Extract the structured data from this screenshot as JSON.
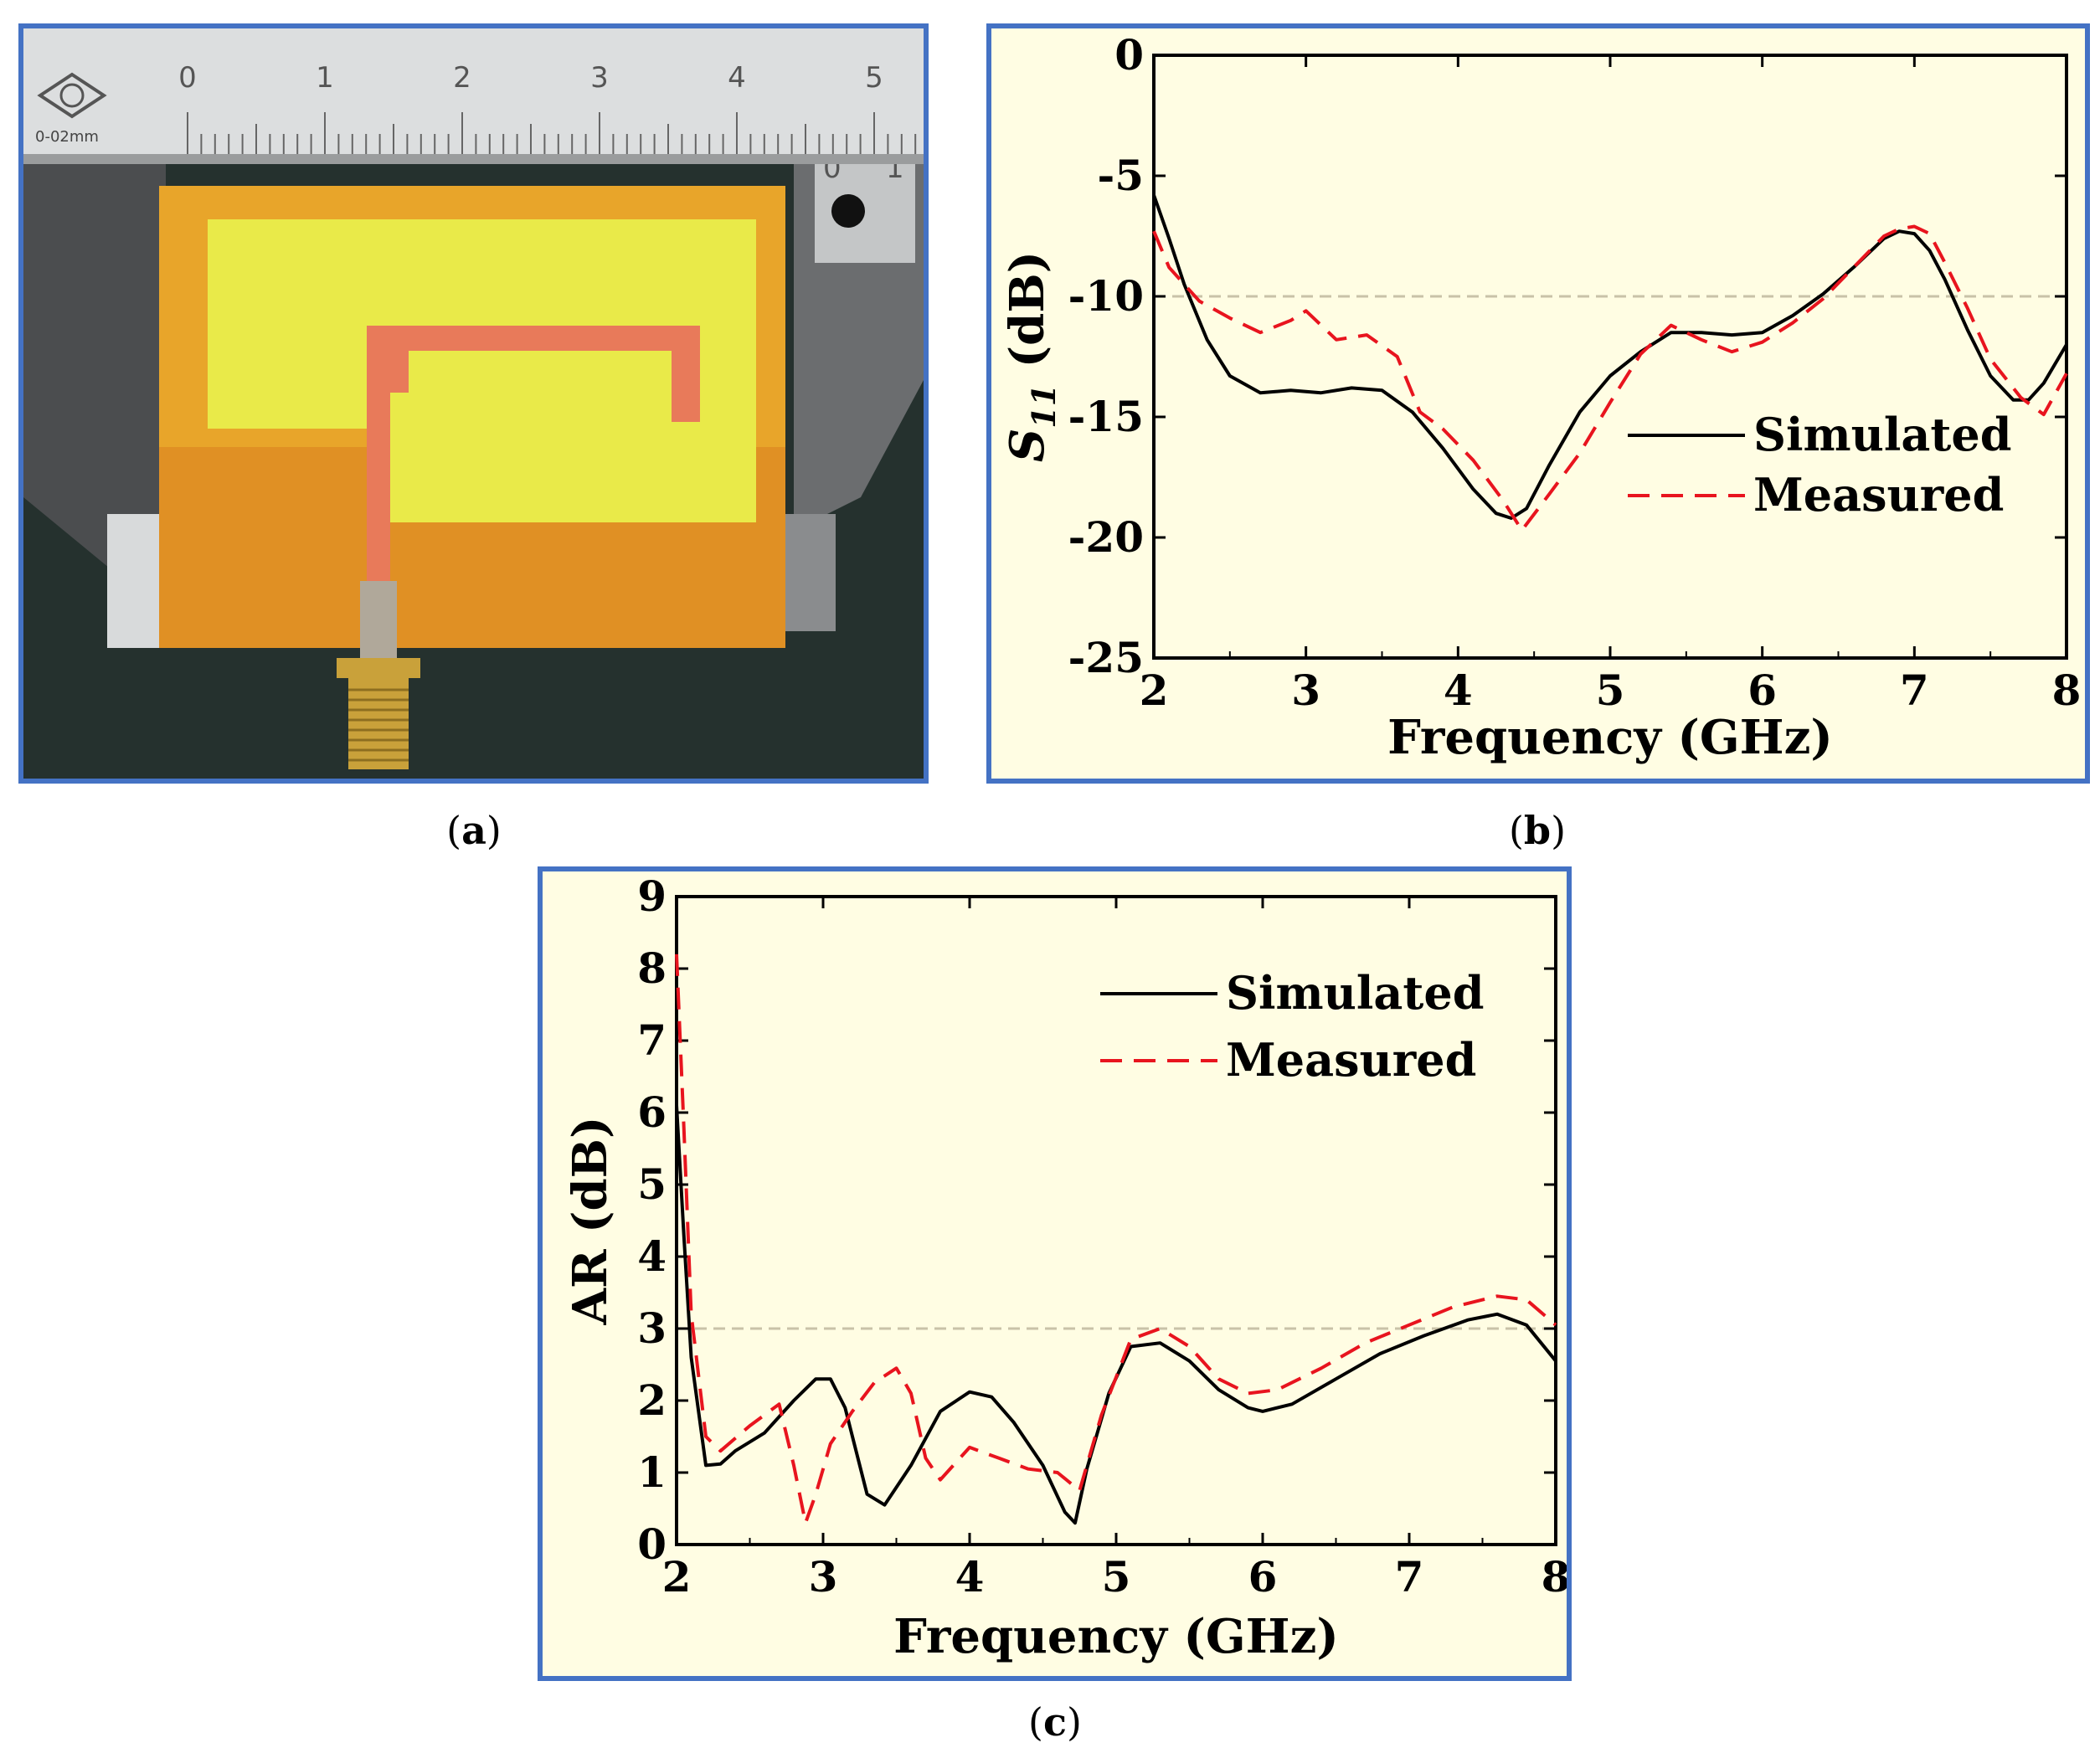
{
  "captions": {
    "a": "a",
    "b": "b",
    "c": "c"
  },
  "photo": {
    "ruler_numbers": [
      "0",
      "1",
      "2",
      "3",
      "4",
      "5"
    ],
    "ruler_small_numbers": [
      "0",
      "1"
    ],
    "ruler_brand": "0-02mm",
    "colors": {
      "substrate": "#e8a52a",
      "ground_yellow": "#e9ea49",
      "feed": "#e87a5a",
      "connector": "#c9a13a"
    }
  },
  "chart_data": [
    {
      "id": "b",
      "type": "line",
      "xlabel": "Frequency (GHz)",
      "ylabel_main": "S",
      "ylabel_sub": "11",
      "ylabel_unit": " (dB)",
      "xlim": [
        2,
        8
      ],
      "ylim": [
        -25,
        0
      ],
      "xticks": [
        2,
        3,
        4,
        5,
        6,
        7,
        8
      ],
      "yticks": [
        0,
        -5,
        -10,
        -15,
        -20,
        -25
      ],
      "xtick_labels": [
        "2",
        "3",
        "4",
        "5",
        "6",
        "7",
        "8"
      ],
      "ytick_labels": [
        "0",
        "-5",
        "-10",
        "-15",
        "-20",
        "-25"
      ],
      "reference_line": -10,
      "legend_position": "center-right",
      "series": [
        {
          "name": "Simulated",
          "style": "solid",
          "color": "#000000",
          "x": [
            2.0,
            2.1,
            2.2,
            2.35,
            2.5,
            2.7,
            2.9,
            3.1,
            3.3,
            3.5,
            3.7,
            3.9,
            4.1,
            4.25,
            4.35,
            4.45,
            4.6,
            4.8,
            5.0,
            5.2,
            5.4,
            5.6,
            5.8,
            6.0,
            6.2,
            6.4,
            6.6,
            6.8,
            6.9,
            7.0,
            7.1,
            7.2,
            7.35,
            7.5,
            7.65,
            7.75,
            7.85,
            8.0
          ],
          "y": [
            -5.8,
            -7.6,
            -9.5,
            -11.8,
            -13.3,
            -14.0,
            -13.9,
            -14.0,
            -13.8,
            -13.9,
            -14.8,
            -16.3,
            -18.0,
            -19.0,
            -19.2,
            -18.8,
            -17.0,
            -14.8,
            -13.3,
            -12.3,
            -11.5,
            -11.5,
            -11.6,
            -11.5,
            -10.8,
            -9.9,
            -8.8,
            -7.6,
            -7.3,
            -7.4,
            -8.1,
            -9.3,
            -11.4,
            -13.3,
            -14.3,
            -14.3,
            -13.6,
            -12.0
          ]
        },
        {
          "name": "Measured",
          "style": "dashed",
          "color": "#e8141e",
          "x": [
            2.0,
            2.1,
            2.3,
            2.5,
            2.7,
            2.9,
            3.0,
            3.2,
            3.4,
            3.6,
            3.75,
            3.9,
            4.1,
            4.3,
            4.42,
            4.6,
            4.8,
            5.0,
            5.2,
            5.4,
            5.6,
            5.8,
            6.0,
            6.2,
            6.4,
            6.6,
            6.8,
            6.9,
            7.0,
            7.1,
            7.2,
            7.35,
            7.5,
            7.7,
            7.85,
            8.0
          ],
          "y": [
            -7.3,
            -8.8,
            -10.2,
            -10.9,
            -11.5,
            -11.0,
            -10.6,
            -11.8,
            -11.6,
            -12.5,
            -14.8,
            -15.5,
            -16.8,
            -18.5,
            -19.7,
            -18.2,
            -16.5,
            -14.4,
            -12.4,
            -11.2,
            -11.8,
            -12.3,
            -11.9,
            -11.1,
            -10.1,
            -8.8,
            -7.5,
            -7.2,
            -7.1,
            -7.4,
            -8.6,
            -10.5,
            -12.6,
            -14.2,
            -14.9,
            -13.2
          ]
        }
      ]
    },
    {
      "id": "c",
      "type": "line",
      "xlabel": "Frequency (GHz)",
      "ylabel": "AR (dB)",
      "xlim": [
        2,
        8
      ],
      "ylim": [
        0,
        9
      ],
      "xticks": [
        2,
        3,
        4,
        5,
        6,
        7,
        8
      ],
      "yticks": [
        0,
        1,
        2,
        3,
        4,
        5,
        6,
        7,
        8,
        9
      ],
      "xtick_labels": [
        "2",
        "3",
        "4",
        "5",
        "6",
        "7",
        "8"
      ],
      "ytick_labels": [
        "0",
        "1",
        "2",
        "3",
        "4",
        "5",
        "6",
        "7",
        "8",
        "9"
      ],
      "reference_line": 3,
      "legend_position": "top-right",
      "series": [
        {
          "name": "Simulated",
          "style": "solid",
          "color": "#000000",
          "x": [
            2.0,
            2.05,
            2.1,
            2.2,
            2.3,
            2.4,
            2.6,
            2.8,
            2.95,
            3.05,
            3.15,
            3.3,
            3.42,
            3.6,
            3.8,
            4.0,
            4.15,
            4.3,
            4.5,
            4.65,
            4.72,
            4.8,
            4.95,
            5.1,
            5.3,
            5.5,
            5.7,
            5.9,
            6.0,
            6.2,
            6.5,
            6.8,
            7.1,
            7.4,
            7.6,
            7.8,
            8.0
          ],
          "y": [
            6.1,
            4.3,
            2.6,
            1.1,
            1.12,
            1.3,
            1.55,
            2.0,
            2.3,
            2.3,
            1.9,
            0.7,
            0.55,
            1.1,
            1.85,
            2.12,
            2.05,
            1.7,
            1.1,
            0.45,
            0.3,
            1.05,
            2.1,
            2.75,
            2.8,
            2.55,
            2.15,
            1.9,
            1.85,
            1.95,
            2.3,
            2.65,
            2.9,
            3.12,
            3.2,
            3.05,
            2.55
          ]
        },
        {
          "name": "Measured",
          "style": "dashed",
          "color": "#e8141e",
          "x": [
            2.0,
            2.05,
            2.1,
            2.2,
            2.3,
            2.5,
            2.7,
            2.8,
            2.88,
            2.95,
            3.05,
            3.2,
            3.35,
            3.5,
            3.6,
            3.7,
            3.8,
            4.0,
            4.2,
            4.4,
            4.6,
            4.75,
            4.9,
            5.1,
            5.3,
            5.5,
            5.7,
            5.9,
            6.1,
            6.4,
            6.7,
            7.0,
            7.3,
            7.6,
            7.8,
            8.0
          ],
          "y": [
            8.2,
            5.8,
            3.2,
            1.5,
            1.3,
            1.65,
            1.95,
            1.1,
            0.3,
            0.7,
            1.4,
            1.85,
            2.25,
            2.45,
            2.1,
            1.2,
            0.9,
            1.35,
            1.2,
            1.05,
            1.0,
            0.75,
            1.8,
            2.85,
            3.0,
            2.75,
            2.3,
            2.1,
            2.15,
            2.45,
            2.8,
            3.05,
            3.3,
            3.45,
            3.4,
            3.05
          ]
        }
      ]
    }
  ]
}
